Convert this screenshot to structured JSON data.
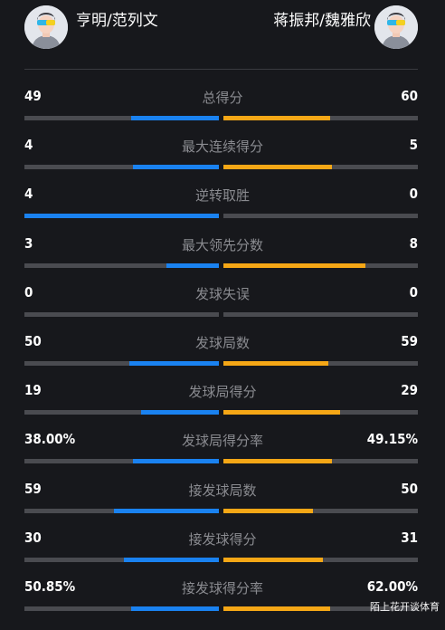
{
  "header": {
    "left_team": "亨明/范列文",
    "right_team": "蒋振邦/魏雅欣",
    "left_avatar_icon": "player-avatar-icon",
    "right_avatar_icon": "player-avatar-icon"
  },
  "colors": {
    "left_bar": "#1a82f0",
    "right_bar": "#f5a716",
    "track": "#4a4b50",
    "background": "#17181c"
  },
  "stats": [
    {
      "label": "总得分",
      "left": "49",
      "right": "60",
      "left_frac": 0.45,
      "right_frac": 0.55
    },
    {
      "label": "最大连续得分",
      "left": "4",
      "right": "5",
      "left_frac": 0.44,
      "right_frac": 0.56
    },
    {
      "label": "逆转取胜",
      "left": "4",
      "right": "0",
      "left_frac": 1.0,
      "right_frac": 0.0
    },
    {
      "label": "最大领先分数",
      "left": "3",
      "right": "8",
      "left_frac": 0.27,
      "right_frac": 0.73
    },
    {
      "label": "发球失误",
      "left": "0",
      "right": "0",
      "left_frac": 0.0,
      "right_frac": 0.0
    },
    {
      "label": "发球局数",
      "left": "50",
      "right": "59",
      "left_frac": 0.46,
      "right_frac": 0.54
    },
    {
      "label": "发球局得分",
      "left": "19",
      "right": "29",
      "left_frac": 0.4,
      "right_frac": 0.6
    },
    {
      "label": "发球局得分率",
      "left": "38.00%",
      "right": "49.15%",
      "left_frac": 0.44,
      "right_frac": 0.56
    },
    {
      "label": "接发球局数",
      "left": "59",
      "right": "50",
      "left_frac": 0.54,
      "right_frac": 0.46
    },
    {
      "label": "接发球得分",
      "left": "30",
      "right": "31",
      "left_frac": 0.49,
      "right_frac": 0.51
    },
    {
      "label": "接发球得分率",
      "left": "50.85%",
      "right": "62.00%",
      "left_frac": 0.45,
      "right_frac": 0.55
    }
  ],
  "watermark": "陌上花开谈体育"
}
